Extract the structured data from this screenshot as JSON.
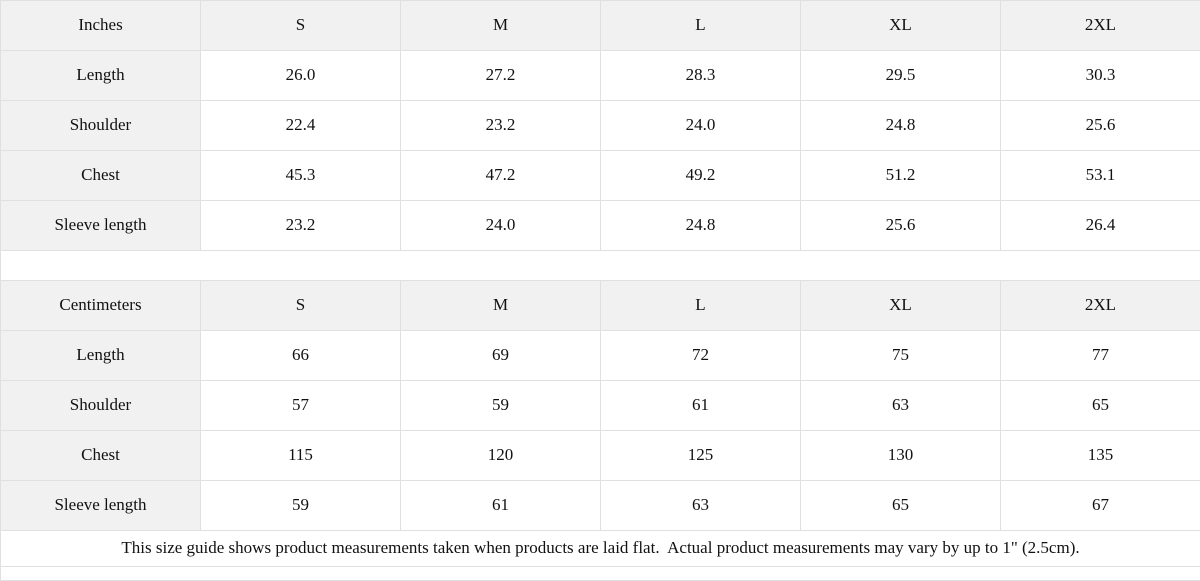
{
  "colors": {
    "header_cell_bg": "#f1f1f1",
    "border": "#e0e0e0",
    "text": "#111111",
    "background": "#ffffff"
  },
  "size_guide": {
    "sections": [
      {
        "unit_label": "Inches",
        "sizes": [
          "S",
          "M",
          "L",
          "XL",
          "2XL"
        ],
        "rows": [
          {
            "label": "Length",
            "values": [
              "26.0",
              "27.2",
              "28.3",
              "29.5",
              "30.3"
            ]
          },
          {
            "label": "Shoulder",
            "values": [
              "22.4",
              "23.2",
              "24.0",
              "24.8",
              "25.6"
            ]
          },
          {
            "label": "Chest",
            "values": [
              "45.3",
              "47.2",
              "49.2",
              "51.2",
              "53.1"
            ]
          },
          {
            "label": "Sleeve length",
            "values": [
              "23.2",
              "24.0",
              "24.8",
              "25.6",
              "26.4"
            ]
          }
        ]
      },
      {
        "unit_label": "Centimeters",
        "sizes": [
          "S",
          "M",
          "L",
          "XL",
          "2XL"
        ],
        "rows": [
          {
            "label": "Length",
            "values": [
              "66",
              "69",
              "72",
              "75",
              "77"
            ]
          },
          {
            "label": "Shoulder",
            "values": [
              "57",
              "59",
              "61",
              "63",
              "65"
            ]
          },
          {
            "label": "Chest",
            "values": [
              "115",
              "120",
              "125",
              "130",
              "135"
            ]
          },
          {
            "label": "Sleeve length",
            "values": [
              "59",
              "61",
              "63",
              "65",
              "67"
            ]
          }
        ]
      }
    ],
    "footnote": "This size guide shows product measurements taken when products are laid flat.  Actual product measurements may vary by up to 1\" (2.5cm)."
  }
}
